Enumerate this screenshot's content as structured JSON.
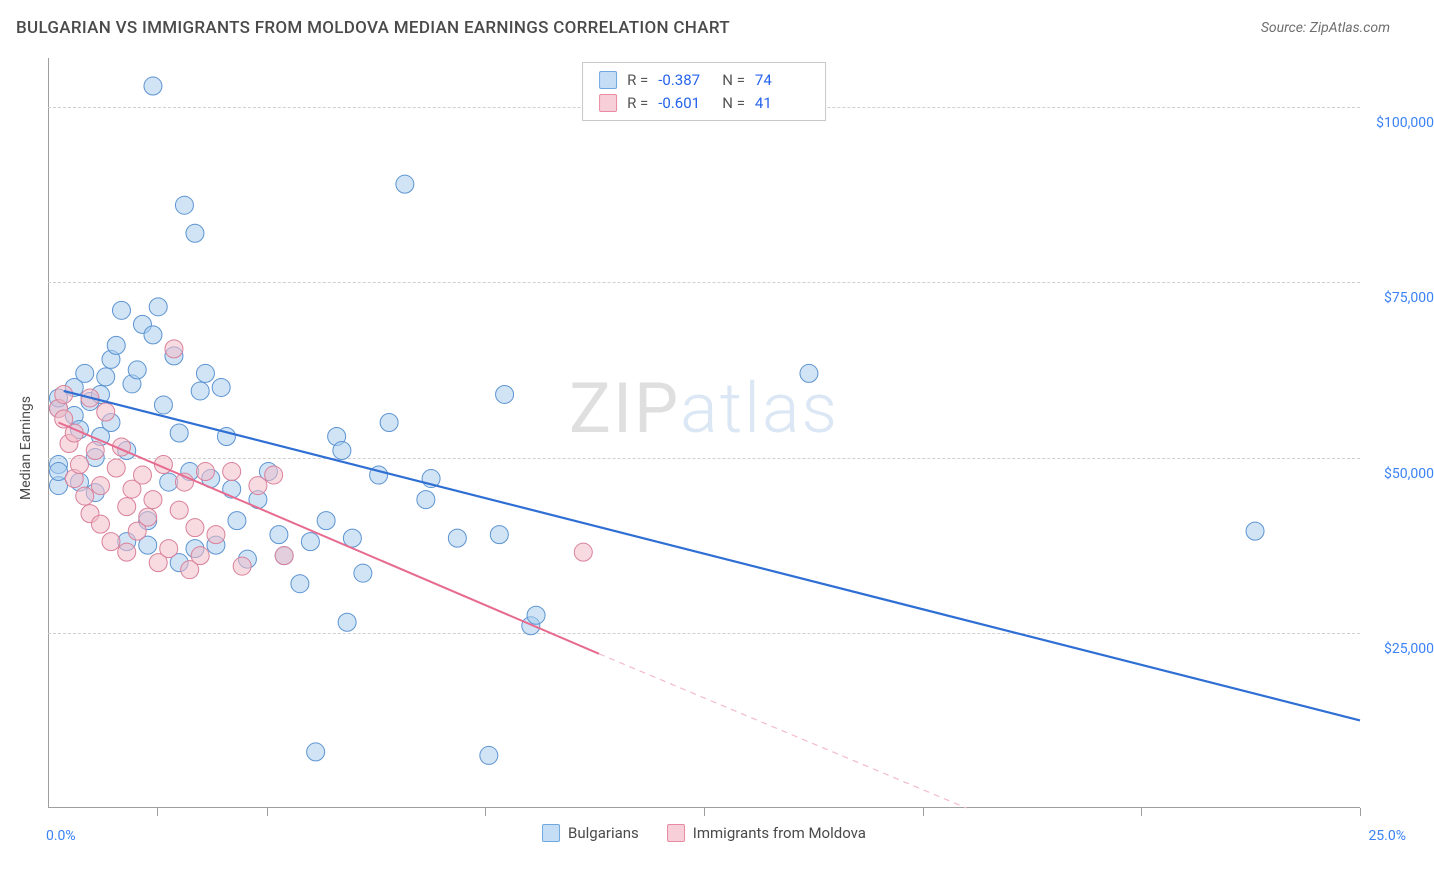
{
  "title": "BULGARIAN VS IMMIGRANTS FROM MOLDOVA MEDIAN EARNINGS CORRELATION CHART",
  "source": "Source: ZipAtlas.com",
  "watermark_zip": "ZIP",
  "watermark_atlas": "atlas",
  "y_axis_label": "Median Earnings",
  "x_axis": {
    "min_label": "0.0%",
    "max_label": "25.0%",
    "min": 0,
    "max": 25,
    "tick_positions_pct": [
      0.083,
      0.167,
      0.333,
      0.5,
      0.667,
      0.833,
      1.0
    ]
  },
  "y_axis": {
    "min": 0,
    "max": 107000,
    "gridlines": [
      {
        "value": 25000,
        "label": "$25,000"
      },
      {
        "value": 50000,
        "label": "$50,000"
      },
      {
        "value": 75000,
        "label": "$75,000"
      },
      {
        "value": 100000,
        "label": "$100,000"
      }
    ]
  },
  "stats": [
    {
      "swatch_fill": "#c5ddf5",
      "swatch_stroke": "#6fa8e0",
      "r": "-0.387",
      "n": "74"
    },
    {
      "swatch_fill": "#f7cfd9",
      "swatch_stroke": "#e88aa3",
      "r": "-0.601",
      "n": "41"
    }
  ],
  "legend": [
    {
      "swatch_fill": "#c5ddf5",
      "swatch_stroke": "#6fa8e0",
      "label": "Bulgarians"
    },
    {
      "swatch_fill": "#f7cfd9",
      "swatch_stroke": "#e88aa3",
      "label": "Immigrants from Moldova"
    }
  ],
  "chart": {
    "type": "scatter",
    "background_color": "#ffffff",
    "grid_color": "#d0d0d0",
    "point_radius": 9,
    "point_opacity": 0.55,
    "series": [
      {
        "name": "Bulgarians",
        "fill": "#a9cdee",
        "stroke": "#5d94d1",
        "points": [
          [
            0.2,
            49000
          ],
          [
            0.2,
            46000
          ],
          [
            0.2,
            48000
          ],
          [
            0.2,
            57000
          ],
          [
            0.2,
            58500
          ],
          [
            0.5,
            56000
          ],
          [
            0.5,
            60000
          ],
          [
            0.6,
            54000
          ],
          [
            0.6,
            46500
          ],
          [
            0.7,
            62000
          ],
          [
            0.8,
            58000
          ],
          [
            0.9,
            45000
          ],
          [
            0.9,
            50000
          ],
          [
            1.0,
            53000
          ],
          [
            1.0,
            59000
          ],
          [
            1.1,
            61500
          ],
          [
            1.2,
            55000
          ],
          [
            1.2,
            64000
          ],
          [
            1.3,
            66000
          ],
          [
            1.4,
            71000
          ],
          [
            1.5,
            51000
          ],
          [
            1.5,
            38000
          ],
          [
            1.6,
            60500
          ],
          [
            1.7,
            62500
          ],
          [
            1.8,
            69000
          ],
          [
            1.9,
            41000
          ],
          [
            1.9,
            37500
          ],
          [
            2.0,
            103000
          ],
          [
            2.0,
            67500
          ],
          [
            2.1,
            71500
          ],
          [
            2.2,
            57500
          ],
          [
            2.3,
            46500
          ],
          [
            2.4,
            64500
          ],
          [
            2.5,
            53500
          ],
          [
            2.5,
            35000
          ],
          [
            2.6,
            86000
          ],
          [
            2.7,
            48000
          ],
          [
            2.8,
            82000
          ],
          [
            2.8,
            37000
          ],
          [
            2.9,
            59500
          ],
          [
            3.0,
            62000
          ],
          [
            3.1,
            47000
          ],
          [
            3.2,
            37500
          ],
          [
            3.3,
            60000
          ],
          [
            3.4,
            53000
          ],
          [
            3.5,
            45500
          ],
          [
            3.6,
            41000
          ],
          [
            3.8,
            35500
          ],
          [
            4.0,
            44000
          ],
          [
            4.2,
            48000
          ],
          [
            4.4,
            39000
          ],
          [
            4.5,
            36000
          ],
          [
            4.8,
            32000
          ],
          [
            5.0,
            38000
          ],
          [
            5.1,
            8000
          ],
          [
            5.3,
            41000
          ],
          [
            5.5,
            53000
          ],
          [
            5.6,
            51000
          ],
          [
            5.7,
            26500
          ],
          [
            5.8,
            38500
          ],
          [
            6.0,
            33500
          ],
          [
            6.3,
            47500
          ],
          [
            6.5,
            55000
          ],
          [
            6.8,
            89000
          ],
          [
            7.2,
            44000
          ],
          [
            7.3,
            47000
          ],
          [
            7.8,
            38500
          ],
          [
            8.4,
            7500
          ],
          [
            8.6,
            39000
          ],
          [
            8.7,
            59000
          ],
          [
            9.2,
            26000
          ],
          [
            9.3,
            27500
          ],
          [
            14.5,
            62000
          ],
          [
            23.0,
            39500
          ]
        ],
        "trend": {
          "x1": 0.3,
          "y1": 59500,
          "x2": 25,
          "y2": 12500,
          "color": "#2f6fd4",
          "width": 2.2
        }
      },
      {
        "name": "Immigrants from Moldova",
        "fill": "#f3bcc9",
        "stroke": "#d9819a",
        "points": [
          [
            0.2,
            57000
          ],
          [
            0.3,
            55500
          ],
          [
            0.3,
            59000
          ],
          [
            0.4,
            52000
          ],
          [
            0.5,
            47000
          ],
          [
            0.5,
            53500
          ],
          [
            0.6,
            49000
          ],
          [
            0.7,
            44500
          ],
          [
            0.8,
            58500
          ],
          [
            0.8,
            42000
          ],
          [
            0.9,
            51000
          ],
          [
            1.0,
            46000
          ],
          [
            1.0,
            40500
          ],
          [
            1.1,
            56500
          ],
          [
            1.2,
            38000
          ],
          [
            1.3,
            48500
          ],
          [
            1.4,
            51500
          ],
          [
            1.5,
            43000
          ],
          [
            1.5,
            36500
          ],
          [
            1.6,
            45500
          ],
          [
            1.7,
            39500
          ],
          [
            1.8,
            47500
          ],
          [
            1.9,
            41500
          ],
          [
            2.0,
            44000
          ],
          [
            2.1,
            35000
          ],
          [
            2.2,
            49000
          ],
          [
            2.3,
            37000
          ],
          [
            2.4,
            65500
          ],
          [
            2.5,
            42500
          ],
          [
            2.6,
            46500
          ],
          [
            2.7,
            34000
          ],
          [
            2.8,
            40000
          ],
          [
            2.9,
            36000
          ],
          [
            3.0,
            48000
          ],
          [
            3.2,
            39000
          ],
          [
            3.5,
            48000
          ],
          [
            3.7,
            34500
          ],
          [
            4.0,
            46000
          ],
          [
            4.3,
            47500
          ],
          [
            4.5,
            36000
          ],
          [
            10.2,
            36500
          ]
        ],
        "trend": {
          "x1": 0.2,
          "y1": 55000,
          "x2": 10.5,
          "y2": 22000,
          "color": "#e76a8f",
          "width": 2
        },
        "trend_dash": {
          "x1": 10.5,
          "y1": 22000,
          "x2": 17.5,
          "y2": 0,
          "color": "#f3bcc9",
          "width": 1.2,
          "dash": "6 5"
        }
      }
    ]
  }
}
